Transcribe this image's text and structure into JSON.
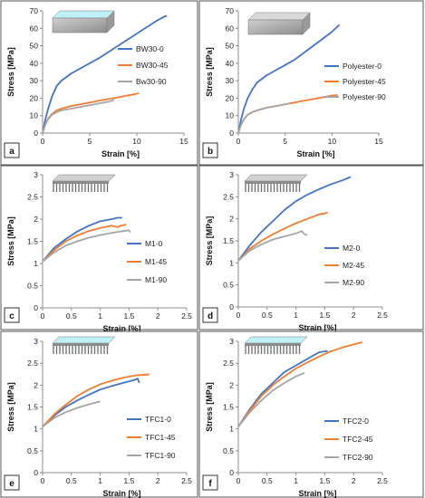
{
  "colors": {
    "s0": "#4472C4",
    "s45": "#ED7D31",
    "s90": "#A5A5A5",
    "border": "#555555",
    "label_box": "#333333"
  },
  "icons": {
    "membrane": "membrane-illustration-icon",
    "comb": "comb-membrane-illustration-icon"
  },
  "chart_data": [
    {
      "type": "line",
      "panel_label": "a",
      "xlabel": "Strain  [%]",
      "ylabel": "Stress [MPa]",
      "xlim": [
        0,
        15
      ],
      "ylim": [
        0,
        70
      ],
      "xticks": [
        0,
        5,
        10,
        15
      ],
      "yticks": [
        0,
        10,
        20,
        30,
        40,
        50,
        60,
        70
      ],
      "icon": "membrane-colored",
      "series": [
        {
          "name": "BW30-0",
          "color_key": "s0",
          "x": [
            0,
            0.3,
            0.6,
            1,
            1.5,
            2,
            3,
            4,
            6,
            8,
            10,
            12,
            13,
            13.2
          ],
          "y": [
            0,
            8,
            14,
            21,
            27,
            30,
            34,
            37,
            43,
            50,
            57,
            64,
            67,
            67
          ]
        },
        {
          "name": "BW30-45",
          "color_key": "s45",
          "x": [
            0,
            0.3,
            0.6,
            1,
            1.5,
            2,
            3,
            4,
            5,
            6,
            7,
            8,
            9,
            10,
            10.2
          ],
          "y": [
            0,
            5,
            8.5,
            11,
            13,
            14,
            15.5,
            16.5,
            17.5,
            18.5,
            19.5,
            20.5,
            21.5,
            22.5,
            23
          ]
        },
        {
          "name": "Bw30-90",
          "color_key": "s90",
          "x": [
            0,
            0.3,
            0.6,
            1,
            1.5,
            2,
            3,
            4,
            5,
            6,
            7,
            7.6
          ],
          "y": [
            0,
            5,
            8,
            10.5,
            12,
            13,
            14,
            15,
            16,
            17,
            18,
            19
          ]
        }
      ]
    },
    {
      "type": "line",
      "panel_label": "b",
      "xlabel": "Strain  [%]",
      "ylabel": "Stress [MPa]",
      "xlim": [
        0,
        15
      ],
      "ylim": [
        0,
        70
      ],
      "xticks": [
        0,
        5,
        10,
        15
      ],
      "yticks": [
        0,
        10,
        20,
        30,
        40,
        50,
        60,
        70
      ],
      "icon": "membrane-gray",
      "series": [
        {
          "name": "Polyester-0",
          "color_key": "s0",
          "x": [
            0,
            0.3,
            0.6,
            1,
            1.5,
            2,
            3,
            4,
            5,
            6,
            7,
            8,
            9,
            10,
            10.8
          ],
          "y": [
            0,
            8,
            14,
            20,
            25,
            29,
            33,
            36,
            39,
            42,
            46,
            50,
            54,
            58,
            62
          ]
        },
        {
          "name": "Polyester-45",
          "color_key": "s45",
          "x": [
            0,
            0.3,
            0.6,
            1,
            1.5,
            2,
            3,
            4,
            5,
            6,
            7,
            8,
            9,
            10,
            10.6
          ],
          "y": [
            0,
            5,
            8,
            10.5,
            12,
            13,
            14.5,
            15.5,
            16.5,
            17.5,
            18.5,
            19.5,
            20.5,
            21.5,
            21.8
          ]
        },
        {
          "name": "Polyester-90",
          "color_key": "s90",
          "x": [
            0,
            0.3,
            0.6,
            1,
            1.5,
            2,
            3,
            4,
            5,
            5.5
          ],
          "y": [
            0,
            5,
            8,
            10.5,
            12,
            13,
            14.5,
            15.5,
            16.5,
            17
          ]
        }
      ]
    },
    {
      "type": "line",
      "panel_label": "c",
      "xlabel": "Strain  [%]",
      "ylabel": "Stress [MPa]",
      "xlim": [
        0,
        2.5
      ],
      "ylim": [
        0,
        3
      ],
      "xticks": [
        0,
        0.5,
        1,
        1.5,
        2,
        2.5
      ],
      "yticks": [
        0,
        0.5,
        1,
        1.5,
        2,
        2.5,
        3
      ],
      "icon": "comb-gray",
      "series": [
        {
          "name": "M1-0",
          "color_key": "s0",
          "x": [
            0,
            0.2,
            0.4,
            0.6,
            0.8,
            1.0,
            1.2,
            1.3,
            1.38
          ],
          "y": [
            1.05,
            1.35,
            1.55,
            1.72,
            1.85,
            1.95,
            2.0,
            2.03,
            2.03
          ]
        },
        {
          "name": "M1-45",
          "color_key": "s45",
          "x": [
            0,
            0.2,
            0.4,
            0.6,
            0.8,
            1.0,
            1.2,
            1.3,
            1.35,
            1.4,
            1.45
          ],
          "y": [
            1.05,
            1.3,
            1.5,
            1.63,
            1.73,
            1.8,
            1.85,
            1.82,
            1.85,
            1.86,
            1.88
          ]
        },
        {
          "name": "M1-90",
          "color_key": "s90",
          "x": [
            0,
            0.2,
            0.4,
            0.6,
            0.8,
            1.0,
            1.2,
            1.4,
            1.5,
            1.52
          ],
          "y": [
            1.05,
            1.25,
            1.4,
            1.5,
            1.58,
            1.64,
            1.69,
            1.73,
            1.75,
            1.7
          ]
        }
      ]
    },
    {
      "type": "line",
      "panel_label": "d",
      "xlabel": "Strain  [%]",
      "ylabel": "Stress [MPa]",
      "xlim": [
        0,
        2.5
      ],
      "ylim": [
        0,
        3
      ],
      "xticks": [
        0,
        0.5,
        1,
        1.5,
        2,
        2.5
      ],
      "yticks": [
        0,
        0.5,
        1,
        1.5,
        2,
        2.5,
        3
      ],
      "icon": "comb-gray",
      "series": [
        {
          "name": "M2-0",
          "color_key": "s0",
          "x": [
            0,
            0.2,
            0.4,
            0.6,
            0.8,
            1.0,
            1.2,
            1.4,
            1.6,
            1.8,
            1.95
          ],
          "y": [
            1.05,
            1.4,
            1.7,
            1.95,
            2.2,
            2.4,
            2.55,
            2.67,
            2.78,
            2.87,
            2.95
          ]
        },
        {
          "name": "M2-45",
          "color_key": "s45",
          "x": [
            0,
            0.2,
            0.4,
            0.6,
            0.8,
            1.0,
            1.2,
            1.4,
            1.5,
            1.55
          ],
          "y": [
            1.05,
            1.32,
            1.5,
            1.65,
            1.78,
            1.9,
            2.0,
            2.1,
            2.12,
            2.15
          ]
        },
        {
          "name": "M2-90",
          "color_key": "s90",
          "x": [
            0,
            0.2,
            0.4,
            0.6,
            0.8,
            1.0,
            1.1,
            1.15,
            1.2
          ],
          "y": [
            1.05,
            1.28,
            1.42,
            1.53,
            1.6,
            1.67,
            1.72,
            1.65,
            1.63
          ]
        }
      ]
    },
    {
      "type": "line",
      "panel_label": "e",
      "xlabel": "Strain  [%]",
      "ylabel": "Stress [MPa]",
      "xlim": [
        0,
        2.5
      ],
      "ylim": [
        0,
        3
      ],
      "xticks": [
        0,
        0.5,
        1,
        1.5,
        2,
        2.5
      ],
      "yticks": [
        0,
        0.5,
        1,
        1.5,
        2,
        2.5,
        3
      ],
      "icon": "comb-colored",
      "series": [
        {
          "name": "TFC1-0",
          "color_key": "s0",
          "x": [
            0,
            0.2,
            0.4,
            0.6,
            0.8,
            1.0,
            1.2,
            1.4,
            1.6,
            1.65,
            1.68
          ],
          "y": [
            1.05,
            1.3,
            1.5,
            1.65,
            1.78,
            1.9,
            1.98,
            2.05,
            2.12,
            2.15,
            2.05
          ]
        },
        {
          "name": "TFC1-45",
          "color_key": "s45",
          "x": [
            0,
            0.2,
            0.4,
            0.6,
            0.8,
            1.0,
            1.2,
            1.4,
            1.6,
            1.8,
            1.85
          ],
          "y": [
            1.05,
            1.33,
            1.55,
            1.75,
            1.9,
            2.02,
            2.1,
            2.17,
            2.22,
            2.24,
            2.24
          ]
        },
        {
          "name": "TFC1-90",
          "color_key": "s90",
          "x": [
            0,
            0.2,
            0.4,
            0.6,
            0.8,
            1.0
          ],
          "y": [
            1.05,
            1.25,
            1.38,
            1.48,
            1.56,
            1.63
          ]
        }
      ]
    },
    {
      "type": "line",
      "panel_label": "f",
      "xlabel": "Strain  [%]",
      "ylabel": "Stress [MPa]",
      "xlim": [
        0,
        2.5
      ],
      "ylim": [
        0,
        3
      ],
      "xticks": [
        0,
        0.5,
        1,
        1.5,
        2,
        2.5
      ],
      "yticks": [
        0,
        0.5,
        1,
        1.5,
        2,
        2.5,
        3
      ],
      "icon": "comb-colored",
      "series": [
        {
          "name": "TFC2-0",
          "color_key": "s0",
          "x": [
            0,
            0.2,
            0.4,
            0.6,
            0.8,
            1.0,
            1.2,
            1.4,
            1.55
          ],
          "y": [
            1.05,
            1.45,
            1.8,
            2.05,
            2.3,
            2.45,
            2.6,
            2.75,
            2.78
          ]
        },
        {
          "name": "TFC2-45",
          "color_key": "s45",
          "x": [
            0,
            0.2,
            0.4,
            0.6,
            0.8,
            1.0,
            1.2,
            1.4,
            1.6,
            1.8,
            2.0,
            2.15
          ],
          "y": [
            1.05,
            1.42,
            1.75,
            2.0,
            2.2,
            2.38,
            2.52,
            2.65,
            2.77,
            2.86,
            2.93,
            2.98
          ]
        },
        {
          "name": "TFC2-90",
          "color_key": "s90",
          "x": [
            0,
            0.2,
            0.4,
            0.6,
            0.8,
            1.0,
            1.15
          ],
          "y": [
            1.05,
            1.38,
            1.65,
            1.88,
            2.05,
            2.2,
            2.28
          ]
        }
      ]
    }
  ]
}
